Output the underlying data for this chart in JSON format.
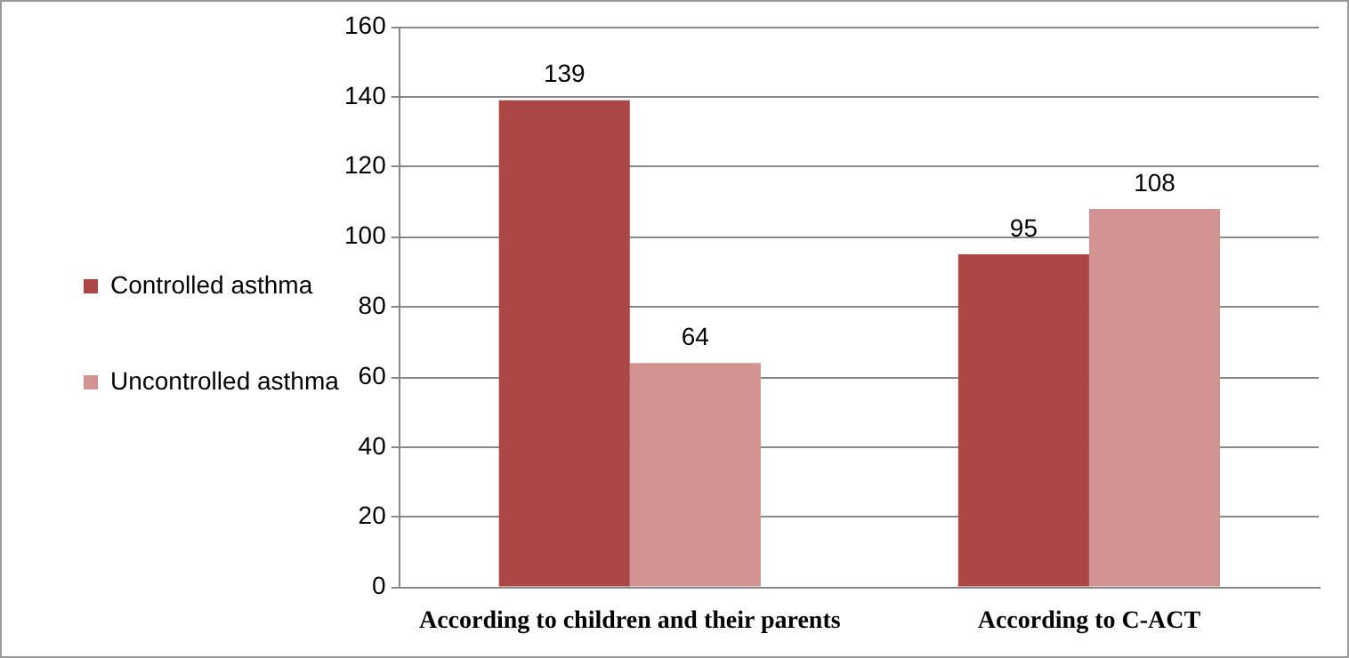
{
  "chart_data": {
    "type": "bar",
    "categories": [
      "According to children and their parents",
      "According to C-ACT"
    ],
    "series": [
      {
        "name": "Controlled asthma",
        "color": "#ab4745",
        "values": [
          139,
          95
        ]
      },
      {
        "name": "Uncontrolled asthma",
        "color": "#d39392",
        "values": [
          64,
          108
        ]
      }
    ],
    "ylim": [
      0,
      160
    ],
    "yticks": [
      0,
      20,
      40,
      60,
      80,
      100,
      120,
      140,
      160
    ],
    "grid": "y",
    "legend": "left",
    "data_labels": true
  }
}
